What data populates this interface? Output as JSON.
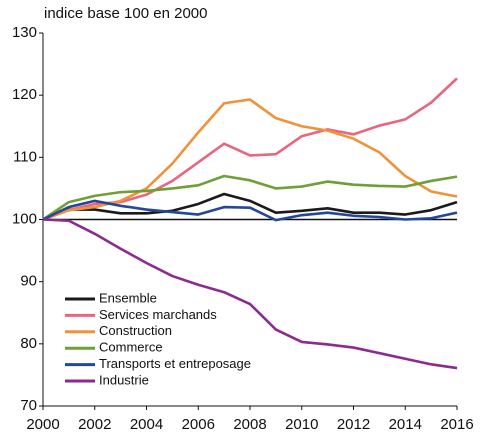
{
  "chart_data": {
    "type": "line",
    "y_axis_label": "indice base 100 en 2000",
    "x": [
      2000,
      2001,
      2002,
      2003,
      2004,
      2005,
      2006,
      2007,
      2008,
      2009,
      2010,
      2011,
      2012,
      2013,
      2014,
      2015,
      2016
    ],
    "xlim": [
      2000,
      2016
    ],
    "xticks": [
      2000,
      2002,
      2004,
      2006,
      2008,
      2010,
      2012,
      2014,
      2016
    ],
    "ylim": [
      70,
      130
    ],
    "yticks": [
      70,
      80,
      90,
      100,
      110,
      120,
      130
    ],
    "legend": "lower-left",
    "series": [
      {
        "name": "Ensemble",
        "color": "#1a1a1a",
        "values": [
          100,
          101.6,
          101.6,
          101,
          101,
          101.4,
          102.5,
          104.1,
          103,
          101.1,
          101.4,
          101.8,
          101.1,
          101.1,
          100.8,
          101.5,
          102.8
        ]
      },
      {
        "name": "Services marchands",
        "color": "#e8667f",
        "values": [
          100,
          101.5,
          102.5,
          102.8,
          104,
          106.2,
          109.2,
          112.2,
          110.3,
          110.5,
          113.4,
          114.5,
          113.7,
          115.1,
          116.1,
          118.8,
          122.7
        ]
      },
      {
        "name": "Construction",
        "color": "#f0923a",
        "values": [
          100,
          101.5,
          102,
          103,
          105,
          109,
          114,
          118.7,
          119.3,
          116.3,
          115,
          114.3,
          113,
          110.8,
          107,
          104.5,
          103.7
        ]
      },
      {
        "name": "Commerce",
        "color": "#6fa035",
        "values": [
          100,
          102.8,
          103.8,
          104.4,
          104.6,
          105,
          105.5,
          107,
          106.3,
          105,
          105.3,
          106.1,
          105.6,
          105.4,
          105.3,
          106.2,
          106.9
        ]
      },
      {
        "name": "Transports et entreposage",
        "color": "#24479a",
        "values": [
          100,
          102,
          103,
          102.2,
          101.6,
          101.2,
          100.8,
          102,
          101.9,
          99.9,
          100.7,
          101.1,
          100.6,
          100.4,
          100,
          100.2,
          101.1
        ]
      },
      {
        "name": "Industrie",
        "color": "#8b2a8f",
        "values": [
          100,
          99.8,
          97.7,
          95.3,
          93,
          90.9,
          89.5,
          88.3,
          86.4,
          82.3,
          80.3,
          79.9,
          79.4,
          78.5,
          77.6,
          76.7,
          76.1
        ]
      }
    ]
  }
}
